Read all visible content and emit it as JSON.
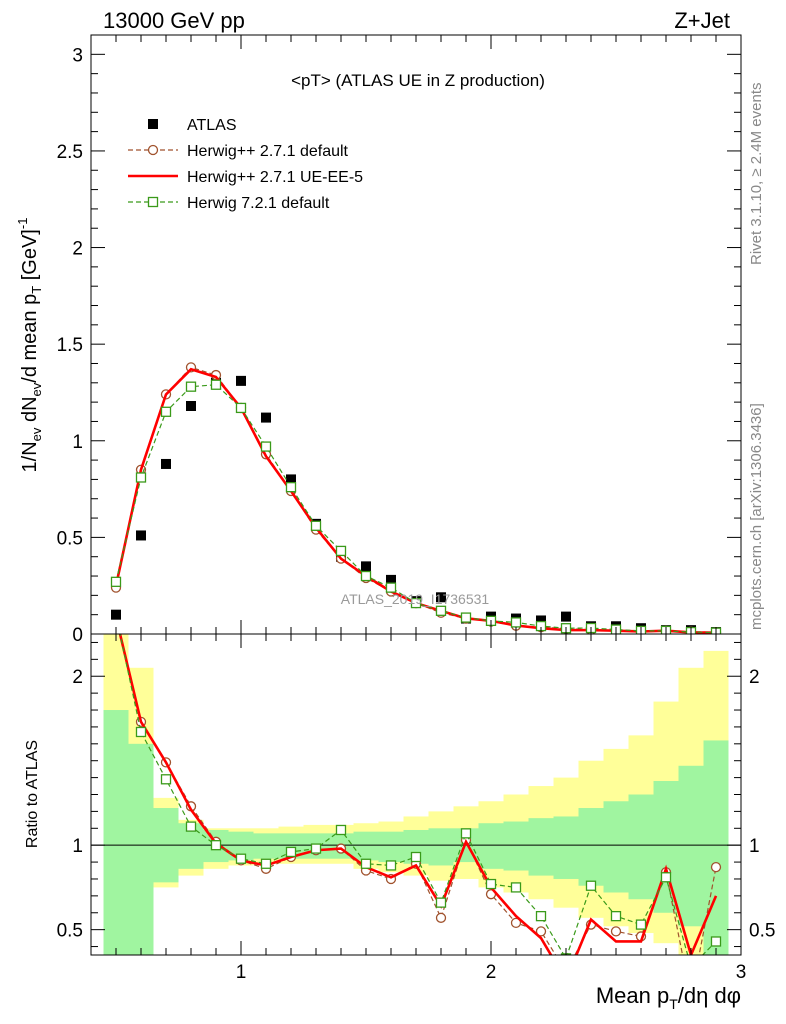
{
  "header": {
    "left": "13000 GeV pp",
    "right": "Z+Jet"
  },
  "side_labels": {
    "top": "Rivet 3.1.10, ≥ 2.4M events",
    "bottom": "mcplots.cern.ch [arXiv:1306.3436]"
  },
  "watermark": "ATLAS_2019_I1736531",
  "axis_labels": {
    "y_main": "1/N_ev dN_ev/d mean p_T [GeV]^-1",
    "y_ratio": "Ratio to ATLAS",
    "x": "Mean p_T/dη dφ"
  },
  "colors": {
    "atlas": "#000000",
    "herwig_default": "#a0522d",
    "herwig_ueee5": "#ff0000",
    "herwig721": "#3a9a1a",
    "band_inner": "#a0f5a0",
    "band_outer": "#ffff99"
  },
  "chart_data": [
    {
      "type": "line",
      "title": "<pT> (ATLAS UE in Z production)",
      "xlabel": "Mean p_T/dη dφ",
      "ylabel": "1/N_ev dN_ev/d mean p_T [GeV]^-1",
      "xlim": [
        0.4,
        3.0
      ],
      "ylim": [
        0,
        3.1
      ],
      "yticks": [
        0,
        0.5,
        1,
        1.5,
        2,
        2.5,
        3
      ],
      "xticks": [
        1,
        2,
        3
      ],
      "legend_position": "top-left",
      "x": [
        0.5,
        0.6,
        0.7,
        0.8,
        0.9,
        1.0,
        1.1,
        1.2,
        1.3,
        1.4,
        1.5,
        1.6,
        1.7,
        1.8,
        1.9,
        2.0,
        2.1,
        2.2,
        2.3,
        2.4,
        2.5,
        2.6,
        2.7,
        2.8,
        2.9
      ],
      "series": [
        {
          "name": "ATLAS",
          "style": "points",
          "values": [
            0.1,
            0.51,
            0.88,
            1.18,
            1.3,
            1.31,
            1.12,
            0.8,
            0.57,
            0.4,
            0.35,
            0.28,
            0.17,
            0.19,
            0.08,
            0.09,
            0.08,
            0.07,
            0.09,
            0.04,
            0.04,
            0.03,
            0.02,
            0.02,
            0.01
          ]
        },
        {
          "name": "Herwig++ 2.7.1 default",
          "style": "dashed-circle",
          "values": [
            0.24,
            0.85,
            1.24,
            1.38,
            1.34,
            1.17,
            0.93,
            0.74,
            0.54,
            0.39,
            0.29,
            0.22,
            0.16,
            0.11,
            0.08,
            0.065,
            0.043,
            0.035,
            0.028,
            0.022,
            0.019,
            0.014,
            0.017,
            0.012,
            0.009
          ]
        },
        {
          "name": "Herwig++ 2.7.1 UE-EE-5",
          "style": "solid",
          "values": [
            0.25,
            0.85,
            1.24,
            1.37,
            1.33,
            1.17,
            0.92,
            0.74,
            0.55,
            0.39,
            0.3,
            0.22,
            0.16,
            0.12,
            0.081,
            0.068,
            0.044,
            0.03,
            0.02,
            0.02,
            0.017,
            0.013,
            0.017,
            0.008,
            0.007
          ]
        },
        {
          "name": "Herwig 7.2.1 default",
          "style": "dashed-square",
          "values": [
            0.27,
            0.81,
            1.15,
            1.28,
            1.29,
            1.17,
            0.97,
            0.76,
            0.56,
            0.43,
            0.3,
            0.24,
            0.16,
            0.12,
            0.085,
            0.068,
            0.06,
            0.041,
            0.03,
            0.031,
            0.023,
            0.016,
            0.016,
            0.01,
            0.007
          ]
        }
      ]
    },
    {
      "type": "line",
      "title": "",
      "xlabel": "Mean p_T/dη dφ",
      "ylabel": "Ratio to ATLAS",
      "xlim": [
        0.4,
        3.0
      ],
      "ylim": [
        0.35,
        2.25
      ],
      "yticks": [
        0.5,
        1,
        2
      ],
      "xticks": [
        1,
        2,
        3
      ],
      "x": [
        0.5,
        0.6,
        0.7,
        0.8,
        0.9,
        1.0,
        1.1,
        1.2,
        1.3,
        1.4,
        1.5,
        1.6,
        1.7,
        1.8,
        1.9,
        2.0,
        2.1,
        2.2,
        2.3,
        2.4,
        2.5,
        2.6,
        2.7,
        2.8,
        2.9
      ],
      "uncertainty_bands": {
        "edges": [
          0.45,
          0.55,
          0.65,
          0.75,
          0.85,
          0.95,
          1.05,
          1.15,
          1.25,
          1.35,
          1.45,
          1.55,
          1.65,
          1.75,
          1.85,
          1.95,
          2.05,
          2.15,
          2.25,
          2.35,
          2.45,
          2.55,
          2.65,
          2.75,
          2.85,
          2.95
        ],
        "inner_low": [
          0.35,
          0.35,
          0.78,
          0.86,
          0.9,
          0.91,
          0.92,
          0.92,
          0.92,
          0.92,
          0.91,
          0.9,
          0.89,
          0.88,
          0.9,
          0.86,
          0.85,
          0.82,
          0.8,
          0.76,
          0.72,
          0.68,
          0.6,
          0.52,
          0.35
        ],
        "inner_high": [
          1.8,
          1.6,
          1.22,
          1.13,
          1.09,
          1.08,
          1.07,
          1.07,
          1.07,
          1.07,
          1.08,
          1.08,
          1.09,
          1.1,
          1.1,
          1.13,
          1.14,
          1.16,
          1.17,
          1.22,
          1.26,
          1.3,
          1.38,
          1.47,
          1.62
        ],
        "outer_low": [
          0.35,
          0.35,
          0.75,
          0.82,
          0.86,
          0.88,
          0.89,
          0.89,
          0.89,
          0.89,
          0.86,
          0.84,
          0.82,
          0.79,
          0.8,
          0.75,
          0.72,
          0.68,
          0.63,
          0.57,
          0.52,
          0.48,
          0.42,
          0.35,
          0.35
        ],
        "outer_high": [
          2.25,
          2.05,
          1.28,
          1.15,
          1.1,
          1.1,
          1.1,
          1.11,
          1.12,
          1.12,
          1.13,
          1.14,
          1.17,
          1.2,
          1.23,
          1.26,
          1.3,
          1.35,
          1.4,
          1.5,
          1.57,
          1.65,
          1.85,
          2.05,
          2.15
        ]
      },
      "reference_line": 1,
      "series": [
        {
          "name": "Herwig++ 2.7.1 default",
          "style": "dashed-circle",
          "values": [
            2.36,
            1.73,
            1.49,
            1.23,
            1.02,
            0.91,
            0.86,
            0.93,
            0.97,
            0.98,
            0.85,
            0.8,
            0.89,
            0.57,
            1.03,
            0.71,
            0.54,
            0.49,
            0.25,
            0.53,
            0.49,
            0.46,
            0.84,
            0.1,
            0.87
          ]
        },
        {
          "name": "Herwig++ 2.7.1 UE-EE-5",
          "style": "solid",
          "values": [
            2.35,
            1.73,
            1.49,
            1.21,
            1.01,
            0.91,
            0.88,
            0.93,
            0.97,
            0.98,
            0.87,
            0.81,
            0.88,
            0.64,
            1.02,
            0.75,
            0.58,
            0.45,
            0.2,
            0.56,
            0.43,
            0.43,
            0.86,
            0.35,
            0.7
          ]
        },
        {
          "name": "Herwig 7.2.1 default",
          "style": "dashed-square",
          "values": [
            2.36,
            1.67,
            1.39,
            1.11,
            1.0,
            0.92,
            0.89,
            0.96,
            0.98,
            1.09,
            0.89,
            0.88,
            0.93,
            0.66,
            1.07,
            0.77,
            0.75,
            0.58,
            0.33,
            0.76,
            0.58,
            0.53,
            0.81,
            0.28,
            0.43
          ]
        }
      ]
    }
  ]
}
